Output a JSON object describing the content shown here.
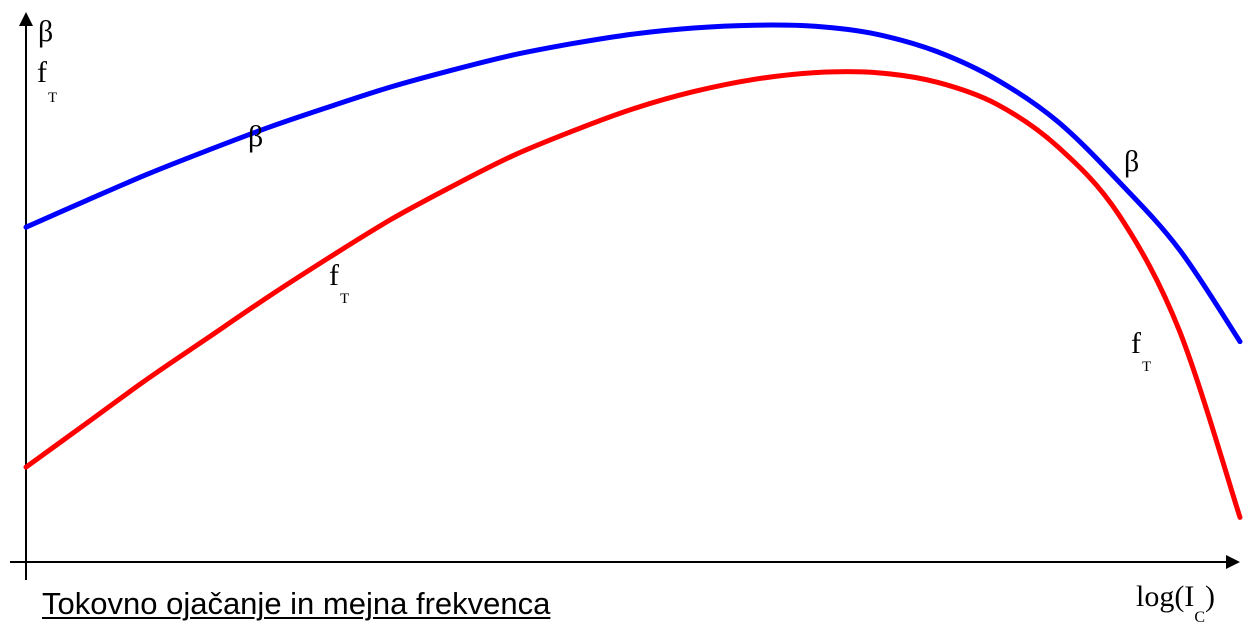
{
  "caption": "Tokovno ojačanje in mejna frekvenca",
  "chart_data": {
    "type": "line",
    "title": "",
    "xlabel": {
      "main": "log(I",
      "sub": "C",
      "close": ")"
    },
    "ylabel": {
      "line1": "β",
      "line2": {
        "main": "f",
        "sub": "T"
      }
    },
    "grid": false,
    "series": [
      {
        "name": "β",
        "label": "β",
        "color": "#0000ff",
        "x": [
          0.0,
          0.05,
          0.1,
          0.15,
          0.2,
          0.25,
          0.3,
          0.35,
          0.4,
          0.45,
          0.5,
          0.55,
          0.6,
          0.65,
          0.7,
          0.75,
          0.8,
          0.85,
          0.9,
          0.95,
          1.0
        ],
        "values": [
          0.6,
          0.648,
          0.695,
          0.738,
          0.779,
          0.816,
          0.851,
          0.881,
          0.908,
          0.929,
          0.946,
          0.957,
          0.962,
          0.96,
          0.946,
          0.915,
          0.864,
          0.789,
          0.682,
          0.56,
          0.395
        ]
      },
      {
        "name": "f",
        "label": {
          "main": "f",
          "sub": "T"
        },
        "color": "#ff0000",
        "x": [
          0.0,
          0.05,
          0.1,
          0.15,
          0.2,
          0.25,
          0.3,
          0.35,
          0.4,
          0.45,
          0.5,
          0.55,
          0.6,
          0.65,
          0.7,
          0.75,
          0.8,
          0.85,
          0.9,
          0.95,
          1.0
        ],
        "values": [
          0.17,
          0.249,
          0.328,
          0.402,
          0.476,
          0.546,
          0.613,
          0.672,
          0.727,
          0.772,
          0.812,
          0.843,
          0.865,
          0.877,
          0.877,
          0.86,
          0.82,
          0.744,
          0.623,
          0.415,
          0.08
        ]
      }
    ]
  }
}
